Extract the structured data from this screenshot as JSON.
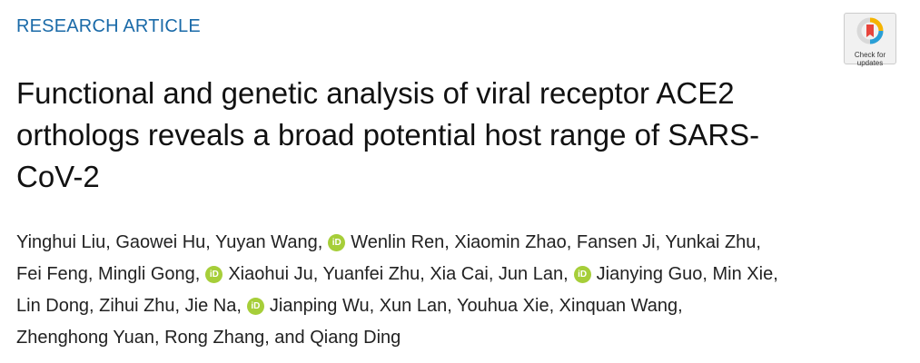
{
  "header": {
    "kicker": "RESEARCH ARTICLE",
    "badge": [
      "Check for",
      "updates"
    ]
  },
  "title": [
    "Functional and genetic analysis of viral receptor ACE2",
    "orthologs reveals a broad potential host range of SARS-",
    "CoV-2"
  ],
  "authors": [
    [
      {
        "text": "Yinghui Liu, Gaowei Hu, Yuyan Wang,",
        "orcid": false
      },
      {
        "text": "Wenlin Ren, Xiaomin Zhao, Fansen Ji, Yunkai Zhu,",
        "orcid": true
      }
    ],
    [
      {
        "text": "Fei Feng, Mingli Gong,",
        "orcid": false
      },
      {
        "text": "Xiaohui Ju, Yuanfei Zhu, Xia Cai, Jun Lan,",
        "orcid": true
      },
      {
        "text": "Jianying Guo, Min Xie,",
        "orcid": true
      }
    ],
    [
      {
        "text": "Lin Dong, Zihui Zhu, Jie Na,",
        "orcid": false
      },
      {
        "text": "Jianping Wu, Xun Lan, Youhua Xie, Xinquan Wang,",
        "orcid": true
      }
    ],
    [
      {
        "text": "Zhenghong Yuan, Rong Zhang, and Qiang Ding",
        "orcid": false
      }
    ]
  ]
}
